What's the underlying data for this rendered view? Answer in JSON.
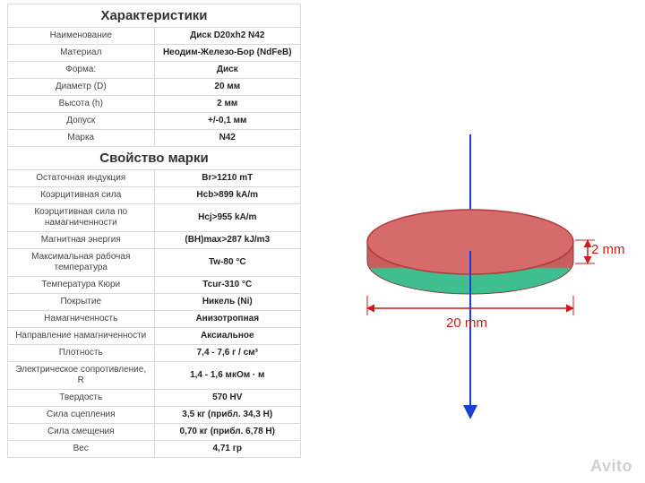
{
  "sections": {
    "characteristics": {
      "title": "Характеристики",
      "rows": [
        {
          "label": "Наименование",
          "value": "Диск D20xh2 N42"
        },
        {
          "label": "Материал",
          "value": "Неодим-Железо-Бор (NdFeB)"
        },
        {
          "label": "Форма:",
          "value": "Диск"
        },
        {
          "label": "Диаметр (D)",
          "value": "20 мм"
        },
        {
          "label": "Высота (h)",
          "value": "2 мм"
        },
        {
          "label": "Допуск",
          "value": "+/-0,1 мм"
        },
        {
          "label": "Марка",
          "value": "N42"
        }
      ]
    },
    "grade": {
      "title": "Свойство марки",
      "rows": [
        {
          "label": "Остаточная индукция",
          "value": "Br>1210 mT"
        },
        {
          "label": "Коэрцитивная сила",
          "value": "Hcb>899 kA/m"
        },
        {
          "label": "Коэрцитивная сила по намагниченности",
          "value": "Hcj>955 kA/m"
        },
        {
          "label": "Магнитная энергия",
          "value": "(BH)max>287 kJ/m3"
        },
        {
          "label": "Максимальная рабочая температура",
          "value": "Tw-80 °C"
        },
        {
          "label": "Температура Кюри",
          "value": "Tcur-310 °C"
        },
        {
          "label": "Покрытие",
          "value": "Никель (Ni)"
        },
        {
          "label": "Намагниченность",
          "value": "Анизотропная"
        },
        {
          "label": "Направление намагниченности",
          "value": "Аксиальное"
        },
        {
          "label": "Плотность",
          "value": "7,4 - 7,6 г / см³"
        },
        {
          "label": "Электрическое сопротивление, R",
          "value": "1,4 - 1,6 мкОм · м"
        },
        {
          "label": "Твердость",
          "value": "570 HV"
        },
        {
          "label": "Сила сцепления",
          "value": "3,5 кг (прибл. 34,3  H)"
        },
        {
          "label": "Сила смещения",
          "value": "0,70 кг (прибл. 6,78 H)"
        },
        {
          "label": "Вес",
          "value": "4,71 гр"
        }
      ]
    }
  },
  "diagram": {
    "diameter_label": "20 mm",
    "height_label": "2 mm",
    "disc_top_color": "#d56b6b",
    "disc_top_stroke": "#b23a3a",
    "disc_side_color_top": "#c95d5d",
    "disc_side_color_bottom": "#3fbf8f",
    "dim_line_color": "#d11919",
    "axis_arrow_color": "#1840d4",
    "background": "#ffffff"
  },
  "watermark": "Avito"
}
